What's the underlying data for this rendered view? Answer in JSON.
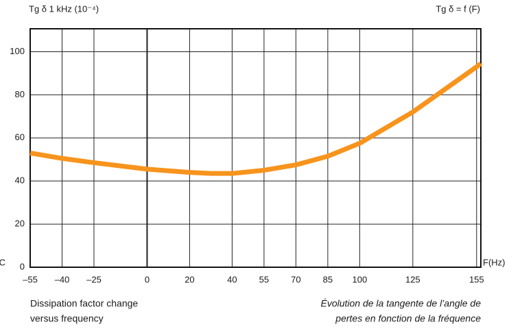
{
  "chart_data": {
    "type": "line",
    "y_label": "Tg δ 1 kHz (10⁻⁴)",
    "title": "Tg δ = f (F)",
    "x_unit_left": "C",
    "x_label": "F(Hz)",
    "caption_left": [
      "Dissipation factor change",
      "versus frequency"
    ],
    "caption_right": [
      "Évolution de la tangente de l’angle de",
      "pertes en fonction de la fréquence"
    ],
    "xlim": [
      -55,
      157
    ],
    "xticks": [
      {
        "value": -55,
        "label": "–55"
      },
      {
        "value": -40,
        "label": "–40"
      },
      {
        "value": -25,
        "label": "–25"
      },
      0,
      20,
      40,
      55,
      70,
      85,
      100,
      125,
      155
    ],
    "ylim": [
      0,
      110
    ],
    "yticks": [
      0,
      20,
      40,
      60,
      80,
      100
    ],
    "grid": true,
    "series": [
      {
        "color": "#f7941d",
        "x": [
          -55,
          -40,
          -25,
          0,
          20,
          30,
          40,
          55,
          70,
          85,
          100,
          125,
          155,
          157
        ],
        "values": [
          53,
          50.5,
          48.5,
          45.5,
          44,
          43.5,
          43.5,
          45,
          47.5,
          51.5,
          57.5,
          72,
          93,
          94.5
        ]
      }
    ]
  }
}
